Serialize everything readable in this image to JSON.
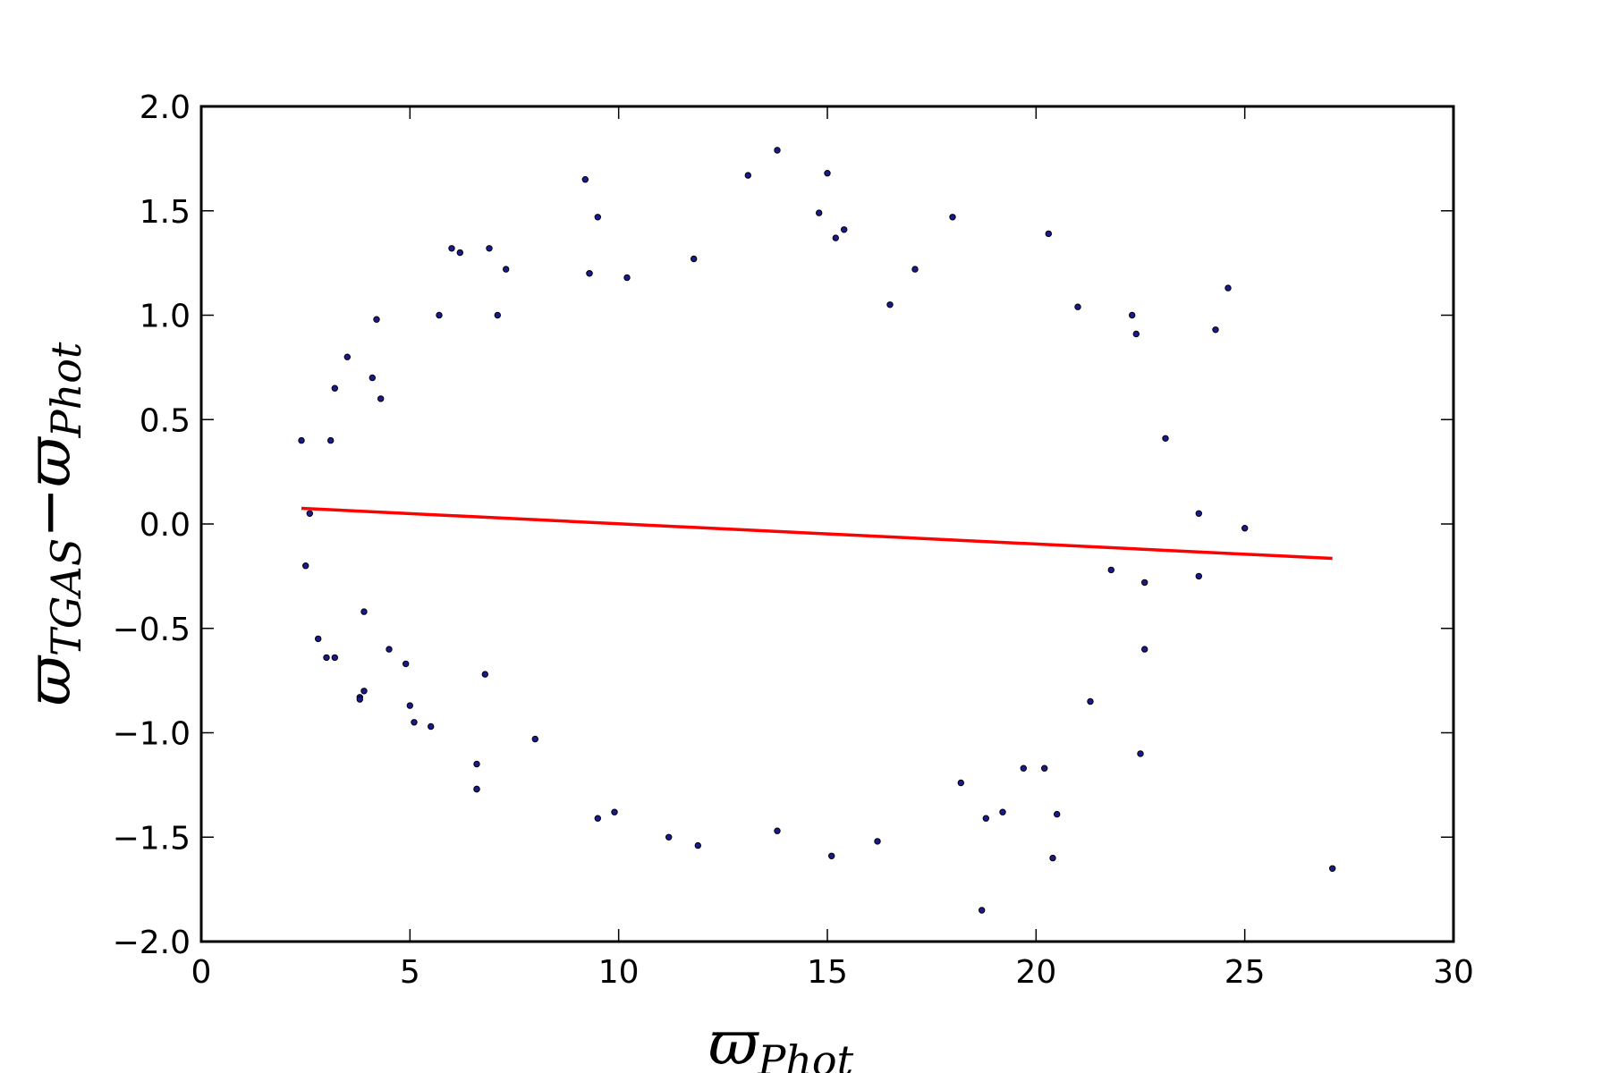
{
  "chart_data": {
    "type": "scatter",
    "title": "",
    "xlabel": {
      "main": "ϖ",
      "sub": "Phot"
    },
    "ylabel": {
      "main_a": "ϖ",
      "sub_a": "TGAS",
      "minus": "−",
      "main_b": "ϖ",
      "sub_b": "Phot"
    },
    "xlim": [
      0,
      30
    ],
    "ylim": [
      -2.0,
      2.0
    ],
    "xticks": [
      0,
      5,
      10,
      15,
      20,
      25,
      30
    ],
    "xtick_labels": [
      "0",
      "5",
      "10",
      "15",
      "20",
      "25",
      "30"
    ],
    "yticks": [
      -2.0,
      -1.5,
      -1.0,
      -0.5,
      0.0,
      0.5,
      1.0,
      1.5,
      2.0
    ],
    "ytick_labels": [
      "−2.0",
      "−1.5",
      "−1.0",
      "−0.5",
      "0.0",
      "0.5",
      "1.0",
      "1.5",
      "2.0"
    ],
    "grid": false,
    "legend": "none",
    "point_color": "#1a1a8c",
    "point_edge_color": "#000000",
    "fit_line": {
      "color": "#ff0000",
      "x": [
        2.4,
        27.1
      ],
      "y": [
        0.075,
        -0.165
      ]
    },
    "series": [
      {
        "x": [
          2.4,
          2.6,
          2.5,
          2.8,
          3.0,
          3.1,
          3.2,
          3.5,
          3.8,
          3.9,
          4.1,
          4.2,
          4.3,
          4.5,
          5.0,
          5.5,
          5.7,
          6.0,
          6.2,
          6.6,
          6.6,
          6.9,
          7.1,
          7.3,
          9.2,
          9.3,
          9.5,
          9.3,
          10.2,
          11.8,
          13.1,
          13.8,
          15.0,
          14.8,
          15.2,
          15.4,
          16.5,
          17.1,
          18.0,
          20.3,
          21.0,
          22.3,
          22.4,
          23.1,
          24.3,
          24.6,
          23.9,
          25.0,
          23.9,
          22.6,
          22.5,
          21.3,
          20.4,
          18.7,
          27.1,
          20.5,
          20.2,
          19.7,
          19.2,
          18.8,
          18.2,
          16.2,
          15.1,
          13.8,
          11.9,
          11.2,
          9.5,
          9.9,
          8.0,
          6.8,
          6.6,
          5.1,
          4.9,
          3.8,
          3.2,
          3.9,
          22.6,
          21.8
        ],
        "y": [
          0.4,
          0.05,
          -0.2,
          -0.55,
          -0.64,
          0.4,
          0.65,
          0.8,
          -0.83,
          -0.8,
          0.7,
          0.98,
          0.6,
          -0.6,
          -0.87,
          -0.97,
          1.0,
          1.32,
          1.3,
          -1.15,
          -1.27,
          1.32,
          1.0,
          1.22,
          1.65,
          1.2,
          1.47,
          1.2,
          1.18,
          1.27,
          1.67,
          1.79,
          1.68,
          1.49,
          1.37,
          1.41,
          1.05,
          1.22,
          1.47,
          1.39,
          1.04,
          1.0,
          0.91,
          0.41,
          0.93,
          1.13,
          0.05,
          -0.02,
          -0.25,
          -0.28,
          -1.1,
          -0.85,
          -1.6,
          -1.85,
          -1.65,
          -1.39,
          -1.17,
          -1.17,
          -1.38,
          -1.41,
          -1.24,
          -1.52,
          -1.59,
          -1.47,
          -1.54,
          -1.5,
          -1.41,
          -1.38,
          -1.03,
          -0.72,
          -1.27,
          -0.95,
          -0.67,
          -0.84,
          -0.64,
          -0.42,
          -0.6,
          -0.22
        ]
      }
    ]
  }
}
